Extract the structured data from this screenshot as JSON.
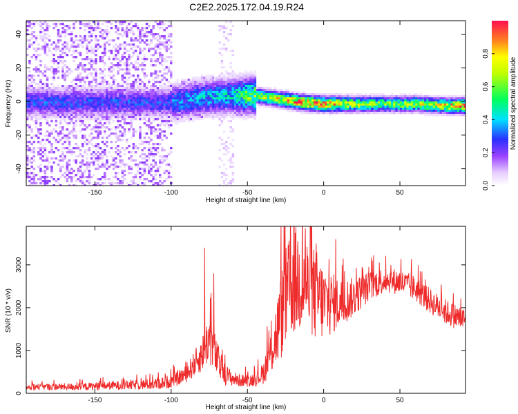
{
  "title": "C2E2.2025.172.04.19.R24",
  "colors": {
    "background": "#ffffff",
    "axis": "#000000",
    "snr_line": "#ee2a2a",
    "spectrogram_palette": [
      "#ffffff",
      "#e6ccff",
      "#b070ff",
      "#7700ee",
      "#2040ff",
      "#00e0ff",
      "#00ff40",
      "#ffff00",
      "#ff2020"
    ]
  },
  "chart_data": [
    {
      "type": "heatmap",
      "name": "spectrogram",
      "xlabel": "Height of straight line (km)",
      "ylabel": "Frequency (Hz)",
      "xlim": [
        -195,
        93
      ],
      "ylim": [
        -50,
        48
      ],
      "xticks": [
        -150,
        -100,
        -50,
        0,
        50
      ],
      "xtick_labels": [
        "-150",
        "-100",
        "-50",
        "0",
        "50"
      ],
      "yticks": [
        -40,
        -20,
        0,
        20,
        40
      ],
      "ytick_labels": [
        "-40",
        "-20",
        "0",
        "20",
        "40"
      ],
      "ridge": {
        "x": [
          -100,
          -80,
          -60,
          -45,
          -30,
          -15,
          0,
          20,
          40,
          60,
          80,
          93
        ],
        "freq_hz": [
          0,
          3,
          4,
          4,
          2,
          0,
          -1,
          -1,
          -1,
          -1,
          -2,
          -2
        ],
        "peak_amplitude": [
          0.35,
          0.4,
          0.45,
          0.7,
          0.75,
          0.95,
          0.9,
          0.7,
          0.65,
          0.7,
          0.8,
          0.95
        ]
      },
      "noise_region_x": [
        -195,
        -100
      ],
      "colorbar": {
        "label": "Normalized spectral amplitude",
        "range": [
          0,
          1
        ],
        "ticks": [
          0.0,
          0.2,
          0.4,
          0.6,
          0.8
        ],
        "tick_labels": [
          "0.0",
          "0.2",
          "0.4",
          "0.6",
          "0.8"
        ]
      },
      "grid": false
    },
    {
      "type": "line",
      "name": "snr",
      "xlabel": "Height of straight line (km)",
      "ylabel": "SNR (10 * v/v)",
      "xlim": [
        -195,
        93
      ],
      "ylim": [
        0,
        3900
      ],
      "xticks": [
        -150,
        -100,
        -50,
        0,
        50
      ],
      "xtick_labels": [
        "-150",
        "-100",
        "-50",
        "0",
        "50"
      ],
      "yticks": [
        0,
        1000,
        2000,
        3000
      ],
      "ytick_labels": [
        "0",
        "1000",
        "2000",
        "3000"
      ],
      "series": [
        {
          "x": [
            -195,
            -180,
            -160,
            -140,
            -120,
            -110,
            -100,
            -90,
            -80,
            -75,
            -70,
            -65,
            -60,
            -55,
            -50,
            -45,
            -40,
            -35,
            -30,
            -25,
            -20,
            -15,
            -12,
            -10,
            -5,
            0,
            10,
            20,
            30,
            40,
            50,
            60,
            70,
            80,
            93
          ],
          "y": [
            150,
            150,
            150,
            180,
            200,
            220,
            280,
            450,
            900,
            1300,
            800,
            450,
            350,
            300,
            300,
            320,
            450,
            900,
            1500,
            2200,
            2600,
            2700,
            2500,
            2400,
            2300,
            2100,
            2100,
            2250,
            2500,
            2650,
            2600,
            2450,
            2150,
            1900,
            1700
          ],
          "spikes": [
            [
              -78,
              3400
            ],
            [
              -72,
              2800
            ],
            [
              -12,
              3850
            ],
            [
              -5,
              3500
            ],
            [
              8,
              3600
            ]
          ],
          "noise_amplitude": [
            80,
            80,
            90,
            100,
            120,
            140,
            160,
            200,
            400,
            600,
            450,
            250,
            180,
            150,
            150,
            160,
            250,
            500,
            900,
            1200,
            1300,
            1300,
            1300,
            1200,
            1100,
            900,
            600,
            450,
            350,
            300,
            300,
            300,
            300,
            300,
            300
          ]
        }
      ],
      "grid": false
    }
  ]
}
